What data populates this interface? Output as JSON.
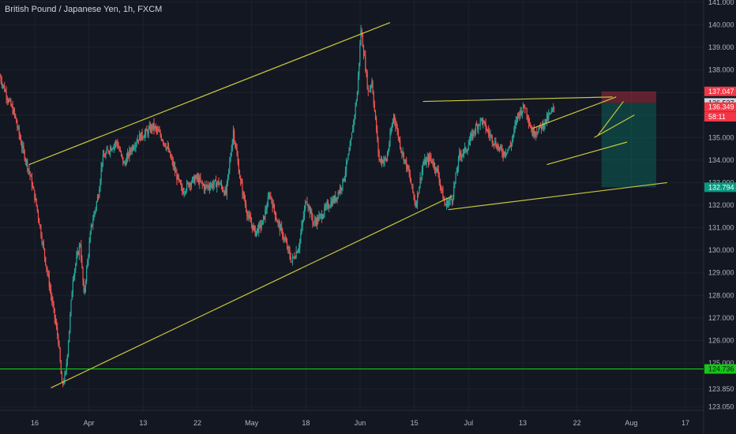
{
  "chart_data": {
    "type": "candlestick",
    "title": "British Pound / Japanese Yen, 1h, FXCM",
    "ylim": [
      122.9,
      141.1
    ],
    "y_ticks": [
      "141.000",
      "140.000",
      "139.000",
      "138.000",
      "137.000",
      "136.000",
      "135.000",
      "134.000",
      "133.000",
      "132.000",
      "131.000",
      "130.000",
      "129.000",
      "128.000",
      "127.000",
      "126.000",
      "125.000",
      "123.850",
      "123.050"
    ],
    "x_ticks": [
      "16",
      "Apr",
      "13",
      "22",
      "May",
      "18",
      "Jun",
      "15",
      "Jul",
      "13",
      "22",
      "Aug",
      "17"
    ],
    "price_tags": [
      {
        "label": "137.047",
        "value": 137.047,
        "bg": "#f23645",
        "fg": "#ffffff"
      },
      {
        "label": "136.537",
        "value": 136.537,
        "bg": "#d1d4dc",
        "fg": "#131722"
      },
      {
        "label": "136.349",
        "value": 136.349,
        "bg": "#f23645",
        "fg": "#ffffff"
      },
      {
        "label": "58:11",
        "value": 135.92,
        "bg": "#f23645",
        "fg": "#ffffff"
      },
      {
        "label": "132.794",
        "value": 132.794,
        "bg": "#089981",
        "fg": "#ffffff"
      },
      {
        "label": "124.736",
        "value": 124.736,
        "bg": "#14c914",
        "fg": "#131722"
      }
    ],
    "price_path": [
      [
        0,
        137.7
      ],
      [
        2,
        136.8
      ],
      [
        4,
        136.0
      ],
      [
        6,
        134.6
      ],
      [
        8,
        133.5
      ],
      [
        10,
        132.0
      ],
      [
        12,
        130.0
      ],
      [
        14,
        128.0
      ],
      [
        16,
        126.0
      ],
      [
        17,
        124.0
      ],
      [
        18,
        124.5
      ],
      [
        19,
        126.5
      ],
      [
        20,
        128.8
      ],
      [
        21,
        129.6
      ],
      [
        22,
        130.3
      ],
      [
        23,
        128.0
      ],
      [
        24,
        129.5
      ],
      [
        25,
        131.0
      ],
      [
        27,
        132.5
      ],
      [
        28,
        134.0
      ],
      [
        30,
        134.5
      ],
      [
        32,
        134.8
      ],
      [
        34,
        133.8
      ],
      [
        36,
        134.5
      ],
      [
        38,
        135.0
      ],
      [
        40,
        135.2
      ],
      [
        42,
        135.5
      ],
      [
        44,
        135.1
      ],
      [
        46,
        134.5
      ],
      [
        48,
        133.5
      ],
      [
        50,
        132.6
      ],
      [
        52,
        133.0
      ],
      [
        54,
        133.2
      ],
      [
        56,
        132.8
      ],
      [
        58,
        132.9
      ],
      [
        60,
        133.0
      ],
      [
        62,
        132.5
      ],
      [
        64,
        135.3
      ],
      [
        66,
        133.0
      ],
      [
        68,
        131.5
      ],
      [
        70,
        130.8
      ],
      [
        72,
        131.2
      ],
      [
        74,
        132.5
      ],
      [
        76,
        131.3
      ],
      [
        78,
        130.5
      ],
      [
        80,
        129.5
      ],
      [
        82,
        130.2
      ],
      [
        84,
        132.3
      ],
      [
        86,
        131.2
      ],
      [
        88,
        131.5
      ],
      [
        90,
        132.0
      ],
      [
        92,
        132.3
      ],
      [
        94,
        133.0
      ],
      [
        96,
        134.5
      ],
      [
        98,
        137.0
      ],
      [
        99,
        139.8
      ],
      [
        100,
        138.5
      ],
      [
        101,
        137.0
      ],
      [
        102,
        137.5
      ],
      [
        104,
        134.0
      ],
      [
        106,
        134.0
      ],
      [
        108,
        136.0
      ],
      [
        110,
        134.5
      ],
      [
        112,
        133.5
      ],
      [
        114,
        132.0
      ],
      [
        116,
        133.8
      ],
      [
        118,
        134.1
      ],
      [
        120,
        133.5
      ],
      [
        122,
        132.0
      ],
      [
        124,
        132.3
      ],
      [
        126,
        134.2
      ],
      [
        128,
        134.5
      ],
      [
        130,
        135.3
      ],
      [
        132,
        135.8
      ],
      [
        134,
        135.2
      ],
      [
        136,
        134.7
      ],
      [
        138,
        134.3
      ],
      [
        140,
        134.6
      ],
      [
        142,
        136.0
      ],
      [
        144,
        136.4
      ],
      [
        146,
        135.2
      ],
      [
        148,
        135.4
      ],
      [
        150,
        135.8
      ],
      [
        152,
        136.3
      ]
    ],
    "trendlines": [
      {
        "from": [
          8,
          133.8
        ],
        "to": [
          107,
          140.1
        ],
        "color": "#c8c83c"
      },
      {
        "from": [
          14,
          123.9
        ],
        "to": [
          124,
          132.4
        ],
        "color": "#c8c83c"
      },
      {
        "from": [
          116,
          136.6
        ],
        "to": [
          168,
          136.8
        ],
        "color": "#c8c83c"
      },
      {
        "from": [
          123,
          131.8
        ],
        "to": [
          183,
          133.0
        ],
        "color": "#c8c83c"
      },
      {
        "from": [
          146,
          135.4
        ],
        "to": [
          169,
          136.8
        ],
        "color": "#c8c83c"
      },
      {
        "from": [
          150,
          133.8
        ],
        "to": [
          172,
          134.8
        ],
        "color": "#c8c83c"
      },
      {
        "from": [
          163,
          135.0
        ],
        "to": [
          174,
          136.0
        ],
        "color": "#c8c83c"
      },
      {
        "from": [
          164,
          135.1
        ],
        "to": [
          171,
          136.6
        ],
        "color": "#c8c83c"
      }
    ],
    "horizontal_lines": [
      {
        "value": 124.736,
        "color": "#14c914"
      }
    ],
    "zones": [
      {
        "x_range": [
          165,
          180
        ],
        "y_range": [
          136.537,
          137.047
        ],
        "color": "#f23645"
      },
      {
        "x_range": [
          165,
          180
        ],
        "y_range": [
          132.794,
          136.537
        ],
        "color": "#089981"
      }
    ],
    "x_domain": [
      0,
      193
    ],
    "colors": {
      "background": "#131722",
      "up": "#26a69a",
      "down": "#ef5350",
      "grid": "#1e222d",
      "axis_text": "#b2b5be"
    }
  }
}
